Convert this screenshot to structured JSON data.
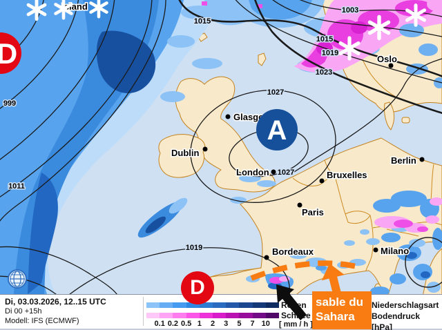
{
  "map": {
    "cities": [
      {
        "name": "Island"
      },
      {
        "name": "Oslo"
      },
      {
        "name": "Glasgow"
      },
      {
        "name": "Dublin"
      },
      {
        "name": "London"
      },
      {
        "name": "Bruxelles"
      },
      {
        "name": "Paris"
      },
      {
        "name": "Berlin"
      },
      {
        "name": "Bordeaux"
      },
      {
        "name": "Milano"
      }
    ],
    "pressure_centers": [
      "D",
      "A",
      "D"
    ],
    "isobar_labels": [
      "999",
      "1011",
      "1015",
      "1003",
      "1015",
      "1019",
      "1023",
      "1027",
      "1027",
      "1019"
    ],
    "annotations": {
      "sahara_line1": "sable du",
      "sahara_line2": "Sahara"
    }
  },
  "legend": {
    "datetime": "Di, 03.03.2026, 12..15 UTC",
    "run": "Di 00 +15h",
    "model": "Modell: IFS (ECMWF)",
    "rain_label": "Regen",
    "snow_label": "Schnee",
    "unit": "[ mm / h ]",
    "scale_ticks": [
      "0.1",
      "0.2",
      "0.5",
      "1",
      "2",
      "3",
      "5",
      "7",
      "10"
    ],
    "rain_colors": [
      "#8cc3f8",
      "#66adf4",
      "#459bf0",
      "#2f88e2",
      "#2e7bd2",
      "#2a6cc0",
      "#2458a8",
      "#1c4690",
      "#143878",
      "#0e2a5e"
    ],
    "snow_colors": [
      "#ffc8f8",
      "#ffa4f4",
      "#ff7cee",
      "#fa55e6",
      "#ee32da",
      "#d81cca",
      "#ba12b2",
      "#970e9c",
      "#730c86",
      "#500768"
    ],
    "right_line1": "Niederschlagsart",
    "right_line2": "Bodendruck [hPa]"
  },
  "colors": {
    "sea": "#cfe0f3",
    "land": "#f7e9c9",
    "border": "#c5821d",
    "low_red": "#e30613",
    "high_blue": "#17509a",
    "accent_orange": "#f87c12"
  }
}
